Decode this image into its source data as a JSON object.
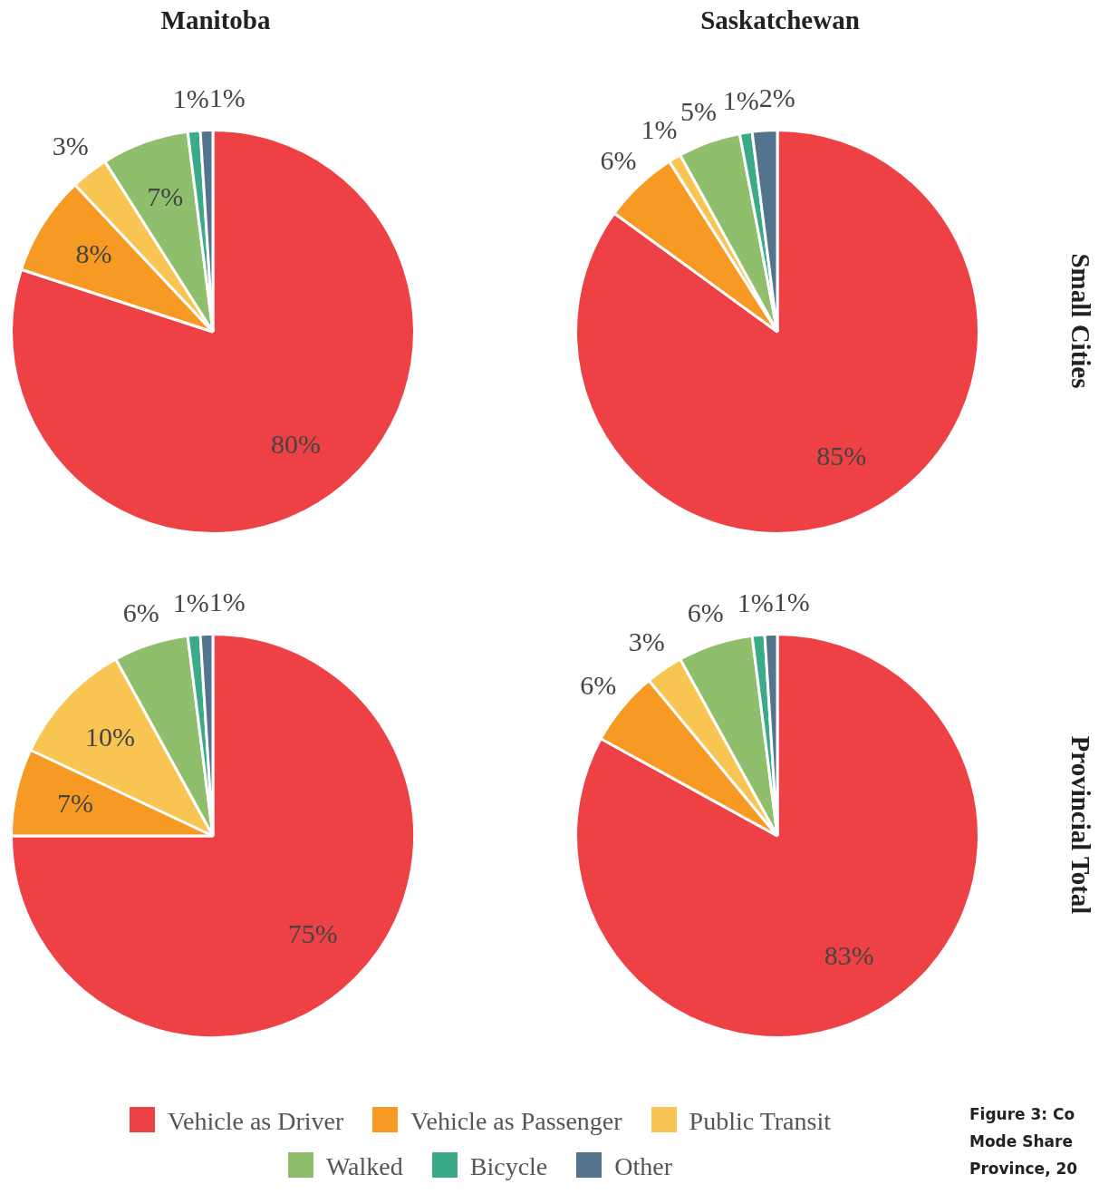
{
  "chart_data": [
    {
      "type": "pie",
      "title": "Manitoba",
      "categories": [
        "Vehicle as Driver",
        "Vehicle as Passenger",
        "Public Transit",
        "Walked",
        "Bicycle",
        "Other"
      ],
      "values": [
        80,
        8,
        3,
        7,
        1,
        1
      ],
      "value_labels": [
        "80%",
        "8%",
        "3%",
        "7%",
        "1%",
        "1%"
      ],
      "colors": [
        "#ee4146",
        "#f69a23",
        "#f8c552",
        "#8fbe6c",
        "#3aaa88",
        "#54738f"
      ],
      "legend": "bottom"
    },
    {
      "type": "pie",
      "title": "Saskatchewan",
      "y2label": "Small Cities",
      "categories": [
        null,
        null,
        null,
        null,
        null,
        null
      ],
      "values": [
        85,
        6,
        1,
        5,
        1,
        2
      ],
      "value_labels": [
        "85%",
        "6%",
        "1%",
        "5%",
        "1%",
        "2%"
      ],
      "colors": [
        "#ee4146",
        "#f69a23",
        "#f8c552",
        "#8fbe6c",
        "#3aaa88",
        "#54738f"
      ]
    },
    {
      "type": "pie",
      "categories": [
        null,
        null,
        null,
        null,
        null,
        null
      ],
      "values": [
        75,
        7,
        10,
        6,
        1,
        1
      ],
      "value_labels": [
        "75%",
        "7%",
        "10%",
        "6%",
        "1%",
        "1%"
      ],
      "colors": [
        "#ee4146",
        "#f69a23",
        "#f8c552",
        "#8fbe6c",
        "#3aaa88",
        "#54738f"
      ]
    },
    {
      "type": "pie",
      "y2label": "Provincial Total",
      "categories": [
        null,
        null,
        null,
        null,
        null,
        null
      ],
      "values": [
        83,
        6,
        3,
        6,
        1,
        1
      ],
      "value_labels": [
        "83%",
        "6%",
        "3%",
        "6%",
        "1%",
        "1%"
      ],
      "colors": [
        "#ee4146",
        "#f69a23",
        "#f8c552",
        "#8fbe6c",
        "#3aaa88",
        "#54738f"
      ],
      "annotations": [
        "Figure 3: Co",
        "Mode Share",
        "Province, 20"
      ]
    }
  ]
}
